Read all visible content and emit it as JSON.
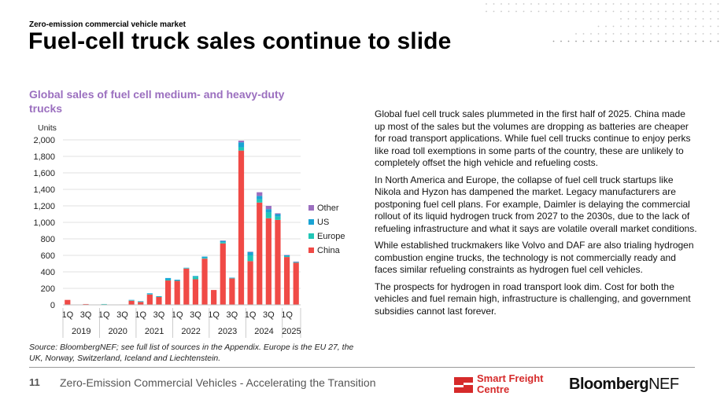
{
  "header": {
    "kicker": "Zero-emission commercial vehicle market",
    "title": "Fuel-cell truck sales continue to slide"
  },
  "chart_title": "Global sales of fuel cell medium- and heavy-duty trucks",
  "chart_data": {
    "type": "bar",
    "stacked": true,
    "title": "Global sales of fuel cell medium- and heavy-duty trucks",
    "ylabel": "Units",
    "ylim": [
      0,
      2000
    ],
    "yticks": [
      0,
      200,
      400,
      600,
      800,
      1000,
      1200,
      1400,
      1600,
      1800,
      2000
    ],
    "categories": [
      "1Q 2019",
      "2Q 2019",
      "3Q 2019",
      "4Q 2019",
      "1Q 2020",
      "2Q 2020",
      "3Q 2020",
      "4Q 2020",
      "1Q 2021",
      "2Q 2021",
      "3Q 2021",
      "4Q 2021",
      "1Q 2022",
      "2Q 2022",
      "3Q 2022",
      "4Q 2022",
      "1Q 2023",
      "2Q 2023",
      "3Q 2023",
      "4Q 2023",
      "1Q 2024",
      "2Q 2024",
      "3Q 2024",
      "4Q 2024",
      "1Q 2025",
      "2Q 2025"
    ],
    "quarter_ticks": [
      "1Q",
      "3Q",
      "1Q",
      "3Q",
      "1Q",
      "3Q",
      "1Q",
      "3Q",
      "1Q",
      "3Q",
      "1Q",
      "3Q",
      "1Q"
    ],
    "years": [
      "2019",
      "2020",
      "2021",
      "2022",
      "2023",
      "2024",
      "2025"
    ],
    "legend_position": "right",
    "grid": true,
    "series": [
      {
        "name": "China",
        "color": "#f04a46",
        "values": [
          60,
          0,
          10,
          0,
          5,
          0,
          5,
          50,
          35,
          125,
          95,
          295,
          290,
          440,
          310,
          560,
          180,
          745,
          320,
          1870,
          530,
          1240,
          1050,
          1030,
          580,
          510
        ]
      },
      {
        "name": "Europe",
        "color": "#20c6b6",
        "values": [
          0,
          0,
          0,
          0,
          5,
          0,
          0,
          5,
          5,
          5,
          5,
          10,
          5,
          5,
          30,
          10,
          0,
          15,
          5,
          40,
          70,
          40,
          70,
          40,
          10,
          5
        ]
      },
      {
        "name": "US",
        "color": "#1aa3d4",
        "values": [
          0,
          0,
          0,
          0,
          0,
          0,
          0,
          5,
          5,
          10,
          5,
          20,
          10,
          5,
          10,
          15,
          0,
          15,
          5,
          60,
          40,
          40,
          40,
          30,
          10,
          5
        ]
      },
      {
        "name": "Other",
        "color": "#9b6fbf",
        "values": [
          0,
          0,
          0,
          0,
          0,
          0,
          0,
          0,
          0,
          0,
          0,
          0,
          0,
          0,
          0,
          0,
          0,
          5,
          0,
          20,
          5,
          45,
          40,
          10,
          5,
          5
        ]
      }
    ]
  },
  "source_note": "Source: BloombergNEF; see full list of sources in the Appendix. Europe is the EU 27, the UK, Norway, Switzerland, Iceland and Liechtenstein.",
  "body_paragraphs": [
    "Global fuel cell truck sales plummeted in the first half of 2025. China made up most of the sales but the volumes are dropping as batteries are cheaper for road transport applications. While fuel cell trucks continue to enjoy perks like road toll exemptions in some parts of the country, these are unlikely to completely offset the high vehicle and refueling costs.",
    "In North America and Europe, the collapse of fuel cell truck startups like Nikola and Hyzon has dampened the market. Legacy manufacturers are postponing fuel cell plans. For example, Daimler is delaying the commercial rollout of its liquid hydrogen truck from 2027 to the 2030s, due to the lack of refueling infrastructure and what it says are volatile overall market conditions.",
    "While established truckmakers like Volvo and DAF are also trialing hydrogen combustion engine trucks, the technology is not commercially ready and faces similar refueling constraints as hydrogen fuel cell vehicles.",
    "The prospects for hydrogen in road transport look dim. Cost for both the vehicles and fuel remain high, infrastructure is challenging, and government subsidies cannot last forever."
  ],
  "footer": {
    "page_number": "11",
    "text": "Zero-Emission Commercial Vehicles - Accelerating the Transition",
    "partner_logo_line1": "Smart Freight",
    "partner_logo_line2": "Centre",
    "brand_logo_bold": "Bloomberg",
    "brand_logo_thin": "NEF"
  }
}
